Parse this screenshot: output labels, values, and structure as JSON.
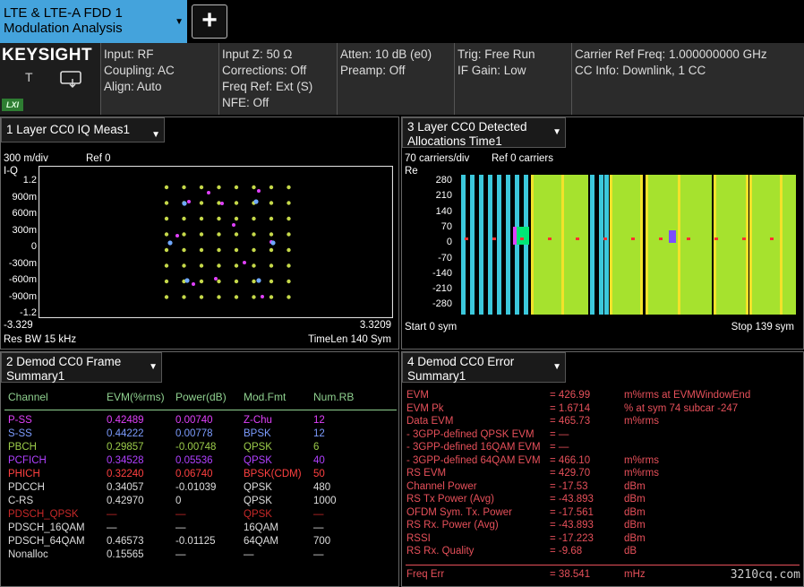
{
  "mode_tab": {
    "line1": "LTE & LTE-A FDD 1",
    "line2": "Modulation Analysis",
    "add_label": "+"
  },
  "brand": {
    "name": "KEYSIGHT",
    "t_label": "T",
    "lxi": "LXI"
  },
  "info": {
    "col1": [
      "Input: RF",
      "Coupling: AC",
      "Align: Auto"
    ],
    "col2": [
      "Input Z: 50 Ω",
      "Corrections: Off",
      "Freq Ref: Ext (S)",
      "NFE: Off"
    ],
    "col3": [
      "Atten: 10 dB (e0)",
      "Preamp: Off"
    ],
    "col4": [
      "Trig: Free Run",
      "IF Gain: Low"
    ],
    "col5": [
      "Carrier Ref Freq: 1.000000000 GHz",
      "CC Info: Downlink, 1 CC"
    ]
  },
  "panel1": {
    "title": "1 Layer CC0 IQ Meas1",
    "scale": "300 m/div",
    "ref": "Ref 0",
    "axis_name": "I-Q",
    "yticks": [
      "1.2",
      "900m",
      "600m",
      "300m",
      "0",
      "-300m",
      "-600m",
      "-900m",
      "-1.2"
    ],
    "xmin": "-3.329",
    "xmax": "3.3209",
    "res_bw": "Res BW 15 kHz",
    "timelen": "TimeLen 140  Sym"
  },
  "panel3": {
    "title_line1": "3 Layer CC0 Detected",
    "title_line2": "Allocations Time1",
    "scale": "70  carriers/div",
    "ref": "Ref 0 carriers",
    "axis_name": "Re",
    "yticks": [
      "280",
      "210",
      "140",
      "70",
      "0",
      "-70",
      "-140",
      "-210",
      "-280"
    ],
    "start": "Start 0  sym",
    "stop": "Stop 139  sym"
  },
  "panel2": {
    "title_line1": "2 Demod CC0 Frame",
    "title_line2": "Summary1",
    "headers": [
      "Channel",
      "EVM(%rms)",
      "Power(dB)",
      "Mod.Fmt",
      "Num.RB"
    ],
    "rows": [
      {
        "ch": "P-SS",
        "evm": "0.42489",
        "pwr": "0.00740",
        "mod": "Z-Chu",
        "rb": "12",
        "color": "#e040fb"
      },
      {
        "ch": "S-SS",
        "evm": "0.44222",
        "pwr": "0.00778",
        "mod": "BPSK",
        "rb": "12",
        "color": "#7c9cff"
      },
      {
        "ch": "PBCH",
        "evm": "0.29857",
        "pwr": "-0.00748",
        "mod": "QPSK",
        "rb": "6",
        "color": "#9ccc4a"
      },
      {
        "ch": "PCFICH",
        "evm": "0.34528",
        "pwr": "0.05536",
        "mod": "QPSK",
        "rb": "40",
        "color": "#b040ff"
      },
      {
        "ch": "PHICH",
        "evm": "0.32240",
        "pwr": "0.06740",
        "mod": "BPSK(CDM)",
        "rb": "50",
        "color": "#ff4040"
      },
      {
        "ch": "PDCCH",
        "evm": "0.34057",
        "pwr": "-0.01039",
        "mod": "QPSK",
        "rb": "480",
        "color": "#dddddd"
      },
      {
        "ch": "C-RS",
        "evm": "0.42970",
        "pwr": "0",
        "mod": "QPSK",
        "rb": "1000",
        "color": "#dddddd"
      },
      {
        "ch": "PDSCH_QPSK",
        "evm": "—",
        "pwr": "—",
        "mod": "QPSK",
        "rb": "—",
        "color": "#c62828"
      },
      {
        "ch": "PDSCH_16QAM",
        "evm": "—",
        "pwr": "—",
        "mod": "16QAM",
        "rb": "—",
        "color": "#dddddd"
      },
      {
        "ch": "PDSCH_64QAM",
        "evm": "0.46573",
        "pwr": "-0.01125",
        "mod": "64QAM",
        "rb": "700",
        "color": "#dddddd"
      },
      {
        "ch": "Nonalloc",
        "evm": "0.15565",
        "pwr": "—",
        "mod": "—",
        "rb": "—",
        "color": "#dddddd"
      }
    ]
  },
  "panel4": {
    "title_line1": "4 Demod CC0 Error",
    "title_line2": "Summary1",
    "rows": [
      {
        "label": "EVM",
        "value": "426.99",
        "unit": "m%rms at  EVMWindowEnd"
      },
      {
        "label": "EVM Pk",
        "value": "1.6714",
        "unit": "%  at  sym 74   subcar  -247"
      },
      {
        "label": "Data EVM",
        "value": "465.73",
        "unit": "m%rms"
      },
      {
        "label": "- 3GPP-defined QPSK EVM",
        "value": "—",
        "unit": ""
      },
      {
        "label": "- 3GPP-defined 16QAM EVM",
        "value": "—",
        "unit": ""
      },
      {
        "label": "- 3GPP-defined 64QAM EVM",
        "value": "466.10",
        "unit": "m%rms"
      },
      {
        "label": "RS EVM",
        "value": "429.70",
        "unit": "m%rms"
      },
      {
        "label": "Channel Power",
        "value": "-17.53",
        "unit": "dBm"
      },
      {
        "label": "RS Tx Power (Avg)",
        "value": "-43.893",
        "unit": "dBm"
      },
      {
        "label": "OFDM Sym. Tx. Power",
        "value": "-17.561",
        "unit": "dBm"
      },
      {
        "label": "RS Rx. Power (Avg)",
        "value": "-43.893",
        "unit": "dBm"
      },
      {
        "label": "RSSI",
        "value": "-17.223",
        "unit": "dBm"
      },
      {
        "label": "RS Rx. Quality",
        "value": "-9.68",
        "unit": "dB"
      },
      {
        "label": "Freq Err",
        "value": "38.541",
        "unit": "mHz"
      }
    ]
  },
  "watermark": "3210cq.com"
}
